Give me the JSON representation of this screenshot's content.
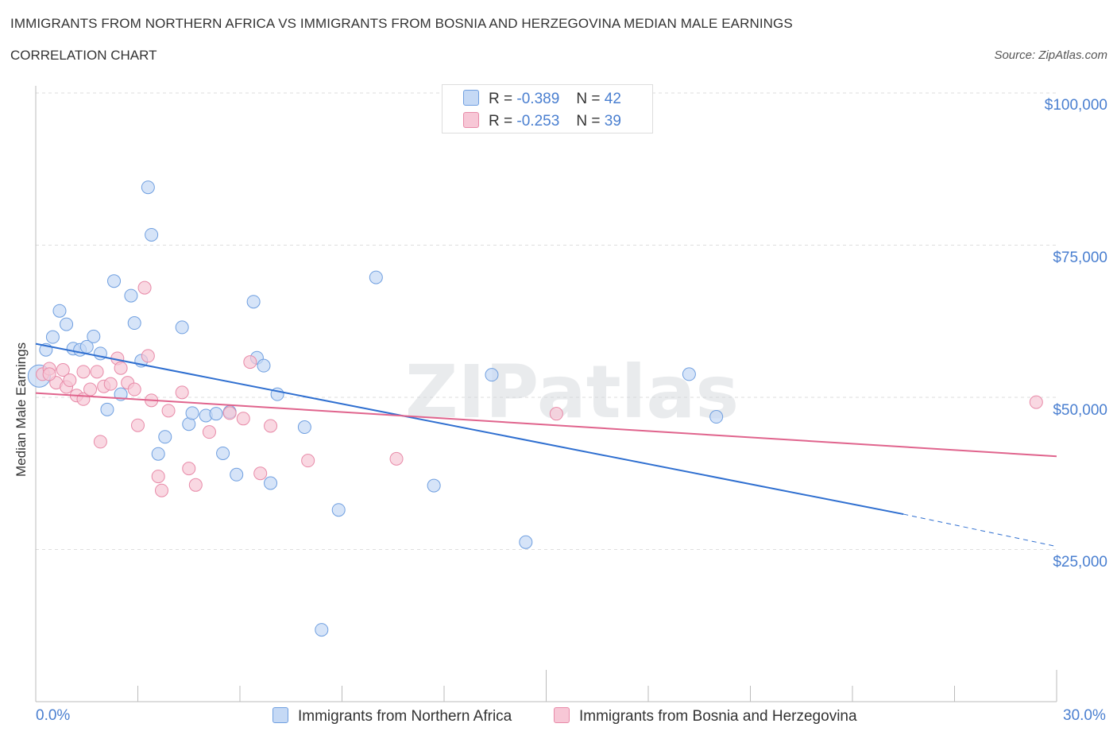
{
  "chart_data": {
    "type": "scatter",
    "title": "IMMIGRANTS FROM NORTHERN AFRICA VS IMMIGRANTS FROM BOSNIA AND HERZEGOVINA MEDIAN MALE EARNINGS",
    "subtitle": "CORRELATION CHART",
    "source": "Source: ZipAtlas.com",
    "ylabel": "Median Male Earnings",
    "xlim": [
      0,
      30
    ],
    "ylim": [
      0,
      100000
    ],
    "x_tick_labels": {
      "left": "0.0%",
      "right": "30.0%"
    },
    "y_ticks": [
      {
        "value": 25000,
        "label": "$25,000"
      },
      {
        "value": 50000,
        "label": "$50,000"
      },
      {
        "value": 75000,
        "label": "$75,000"
      },
      {
        "value": 100000,
        "label": "$100,000"
      }
    ],
    "watermark": "ZIPatlas",
    "legend": [
      {
        "r_label": "R =",
        "r": "-0.389",
        "n_label": "N =",
        "n": "42"
      },
      {
        "r_label": "R =",
        "r": "-0.253",
        "n_label": "N =",
        "n": "39"
      }
    ],
    "series": [
      {
        "name": "Immigrants from Northern Africa",
        "color": "#6f9fe0",
        "fill": "#c5d9f5",
        "line_color": "#2f6fd0",
        "trend": {
          "x0": 0,
          "y0": 58800,
          "x1": 25.5,
          "y1": 30800,
          "dash_to_x": 30,
          "dash_to_y": 25500
        },
        "points": [
          [
            0.1,
            53500
          ],
          [
            0.3,
            57800
          ],
          [
            0.5,
            59900
          ],
          [
            0.7,
            64200
          ],
          [
            0.9,
            62000
          ],
          [
            1.1,
            58000
          ],
          [
            1.3,
            57800
          ],
          [
            1.5,
            58300
          ],
          [
            1.7,
            60000
          ],
          [
            1.9,
            57200
          ],
          [
            2.1,
            48000
          ],
          [
            2.3,
            69100
          ],
          [
            2.5,
            50500
          ],
          [
            2.8,
            66700
          ],
          [
            2.9,
            62200
          ],
          [
            3.1,
            56000
          ],
          [
            3.3,
            84500
          ],
          [
            3.4,
            76700
          ],
          [
            3.6,
            40700
          ],
          [
            3.8,
            43500
          ],
          [
            4.3,
            61500
          ],
          [
            4.5,
            45600
          ],
          [
            4.6,
            47400
          ],
          [
            5.0,
            47000
          ],
          [
            5.3,
            47300
          ],
          [
            5.5,
            40800
          ],
          [
            5.7,
            47600
          ],
          [
            5.9,
            37300
          ],
          [
            6.4,
            65700
          ],
          [
            6.5,
            56500
          ],
          [
            6.7,
            55200
          ],
          [
            6.9,
            35900
          ],
          [
            7.1,
            50500
          ],
          [
            7.9,
            45100
          ],
          [
            8.4,
            11800
          ],
          [
            8.9,
            31500
          ],
          [
            10.0,
            69700
          ],
          [
            11.7,
            35500
          ],
          [
            13.4,
            53700
          ],
          [
            14.4,
            26200
          ],
          [
            19.2,
            53800
          ],
          [
            20.0,
            46800
          ]
        ]
      },
      {
        "name": "Immigrants from Bosnia and Herzegovina",
        "color": "#e88aa8",
        "fill": "#f7c7d6",
        "line_color": "#e0648d",
        "trend": {
          "x0": 0,
          "y0": 50700,
          "x1": 30,
          "y1": 40300
        },
        "points": [
          [
            0.2,
            53800
          ],
          [
            0.4,
            54700
          ],
          [
            0.6,
            52400
          ],
          [
            0.8,
            54500
          ],
          [
            0.9,
            51700
          ],
          [
            1.0,
            52800
          ],
          [
            1.2,
            50300
          ],
          [
            1.4,
            49700
          ],
          [
            1.4,
            54200
          ],
          [
            1.6,
            51300
          ],
          [
            1.8,
            54200
          ],
          [
            1.9,
            42700
          ],
          [
            2.0,
            51800
          ],
          [
            2.2,
            52200
          ],
          [
            2.4,
            56400
          ],
          [
            2.5,
            54800
          ],
          [
            2.7,
            52400
          ],
          [
            2.9,
            51300
          ],
          [
            3.0,
            45400
          ],
          [
            3.2,
            68000
          ],
          [
            3.3,
            56800
          ],
          [
            3.4,
            49500
          ],
          [
            3.6,
            37000
          ],
          [
            3.7,
            34700
          ],
          [
            3.9,
            47800
          ],
          [
            4.3,
            50800
          ],
          [
            4.5,
            38300
          ],
          [
            4.7,
            35600
          ],
          [
            5.1,
            44300
          ],
          [
            5.7,
            47400
          ],
          [
            6.1,
            46500
          ],
          [
            6.3,
            55800
          ],
          [
            6.6,
            37500
          ],
          [
            6.9,
            45300
          ],
          [
            8.0,
            39600
          ],
          [
            10.6,
            39900
          ],
          [
            15.3,
            47300
          ],
          [
            29.4,
            49200
          ],
          [
            0.4,
            53800
          ]
        ]
      }
    ]
  }
}
